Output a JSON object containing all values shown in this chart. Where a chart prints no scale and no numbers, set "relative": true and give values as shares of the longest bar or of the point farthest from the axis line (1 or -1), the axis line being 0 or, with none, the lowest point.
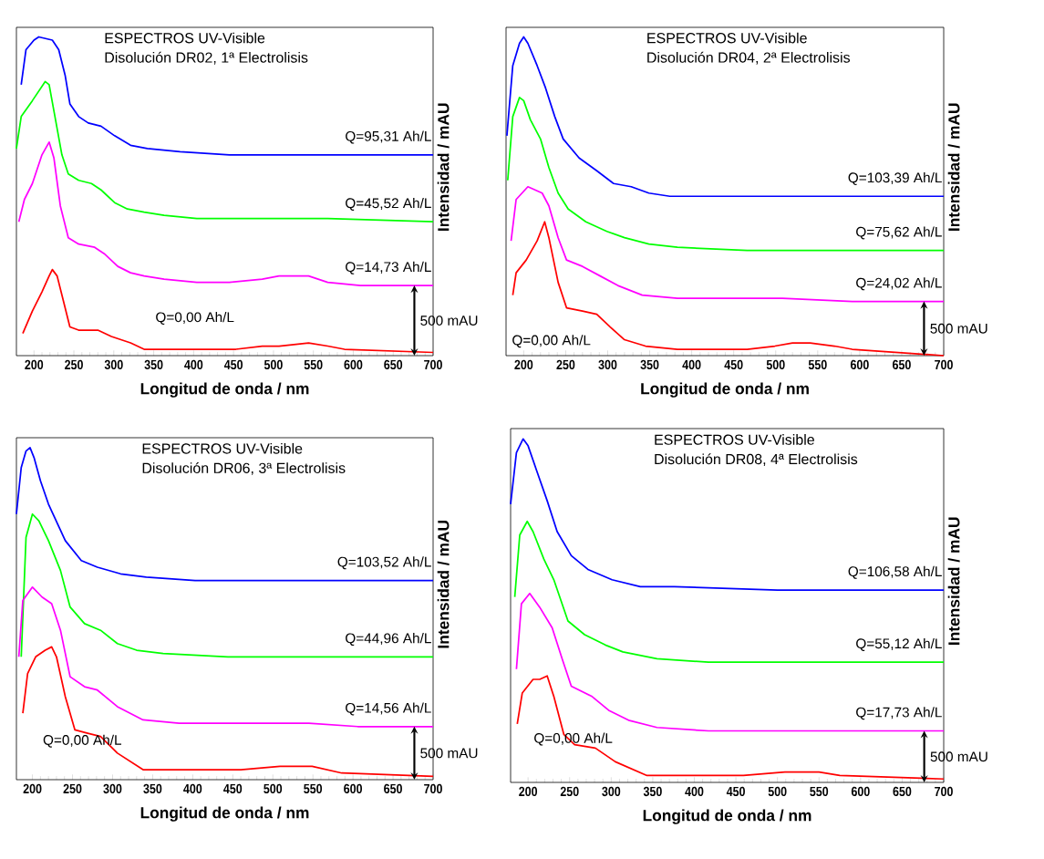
{
  "chart_data": [
    {
      "type": "line",
      "title": "ESPECTROS UV-Visible",
      "subtitle": "Disolución DR02, 1ª Electrolisis",
      "xlabel": "Longitud de onda / nm",
      "ylabel": "Intensidad / mAU",
      "relative": true,
      "xlim": [
        178,
        700
      ],
      "xticks": [
        200,
        250,
        300,
        350,
        400,
        450,
        500,
        550,
        600,
        650,
        700
      ],
      "annotations": [
        "500 mAU"
      ],
      "series": [
        {
          "name": "Q=95,31 Ah/L",
          "color": "#0000ff",
          "x": [
            184,
            190,
            200,
            206,
            223,
            231,
            239,
            245,
            256,
            268,
            284,
            301,
            321,
            342,
            383,
            445,
            568,
            700
          ],
          "values": [
            0.85,
            0.96,
            0.99,
            1.0,
            0.99,
            0.96,
            0.88,
            0.79,
            0.75,
            0.73,
            0.72,
            0.69,
            0.66,
            0.65,
            0.64,
            0.63,
            0.63,
            0.63
          ]
        },
        {
          "name": "Q=45,52 Ah/L",
          "color": "#00ff00",
          "x": [
            178,
            184,
            198,
            214,
            219,
            227,
            235,
            243,
            256,
            272,
            284,
            301,
            317,
            338,
            363,
            404,
            527,
            544,
            568,
            700
          ],
          "values": [
            0.65,
            0.75,
            0.8,
            0.86,
            0.85,
            0.74,
            0.63,
            0.57,
            0.55,
            0.54,
            0.52,
            0.48,
            0.46,
            0.45,
            0.44,
            0.43,
            0.43,
            0.43,
            0.43,
            0.42
          ]
        },
        {
          "name": "Q=14,73 Ah/L",
          "color": "#ff00ff",
          "x": [
            181,
            188,
            198,
            210,
            219,
            225,
            233,
            243,
            256,
            276,
            288,
            305,
            321,
            338,
            363,
            404,
            445,
            486,
            507,
            544,
            568,
            609,
            700
          ],
          "values": [
            0.42,
            0.49,
            0.54,
            0.63,
            0.67,
            0.62,
            0.47,
            0.37,
            0.35,
            0.34,
            0.32,
            0.28,
            0.26,
            0.25,
            0.24,
            0.23,
            0.23,
            0.24,
            0.25,
            0.25,
            0.23,
            0.22,
            0.22
          ]
        },
        {
          "name": "Q=0,00 Ah/L",
          "color": "#ff0000",
          "x": [
            186,
            198,
            210,
            219,
            223,
            229,
            237,
            245,
            256,
            280,
            297,
            321,
            338,
            363,
            404,
            453,
            486,
            507,
            544,
            568,
            589,
            700
          ],
          "values": [
            0.07,
            0.14,
            0.2,
            0.25,
            0.27,
            0.25,
            0.17,
            0.09,
            0.08,
            0.08,
            0.06,
            0.04,
            0.02,
            0.02,
            0.02,
            0.02,
            0.03,
            0.03,
            0.04,
            0.03,
            0.02,
            0.01
          ]
        }
      ]
    },
    {
      "type": "line",
      "title": "ESPECTROS UV-Visible",
      "subtitle": "Disolución DR04, 2ª Electrolisis",
      "xlabel": "Longitud de onda / nm",
      "ylabel": "Intensidad / mAU",
      "relative": true,
      "xlim": [
        179,
        700
      ],
      "xticks": [
        200,
        250,
        300,
        350,
        400,
        450,
        500,
        550,
        600,
        650,
        700
      ],
      "annotations": [
        "500 mAU"
      ],
      "series": [
        {
          "name": "Q=103,39 Ah/L",
          "color": "#0000ff",
          "x": [
            180,
            187,
            195,
            200,
            205,
            216,
            226,
            237,
            247,
            266,
            287,
            307,
            328,
            349,
            374,
            424,
            549,
            700
          ],
          "values": [
            0.69,
            0.91,
            0.98,
            1.0,
            0.98,
            0.91,
            0.84,
            0.75,
            0.68,
            0.62,
            0.58,
            0.54,
            0.53,
            0.51,
            0.5,
            0.5,
            0.5,
            0.5
          ]
        },
        {
          "name": "Q=75,62 Ah/L",
          "color": "#00ff00",
          "x": [
            181,
            187,
            195,
            200,
            208,
            220,
            230,
            241,
            253,
            274,
            299,
            320,
            349,
            383,
            466,
            591,
            700
          ],
          "values": [
            0.55,
            0.75,
            0.81,
            0.8,
            0.74,
            0.68,
            0.59,
            0.51,
            0.46,
            0.42,
            0.39,
            0.37,
            0.35,
            0.34,
            0.33,
            0.33,
            0.33
          ]
        },
        {
          "name": "Q=24,02 Ah/L",
          "color": "#ff00ff",
          "x": [
            185,
            191,
            205,
            222,
            230,
            241,
            251,
            270,
            291,
            312,
            341,
            383,
            508,
            591,
            700
          ],
          "values": [
            0.36,
            0.49,
            0.53,
            0.51,
            0.47,
            0.37,
            0.3,
            0.28,
            0.25,
            0.22,
            0.19,
            0.18,
            0.18,
            0.17,
            0.17
          ]
        },
        {
          "name": "Q=0,00 Ah/L",
          "color": "#ff0000",
          "x": [
            187,
            191,
            203,
            216,
            225,
            230,
            241,
            251,
            270,
            287,
            303,
            320,
            345,
            383,
            466,
            499,
            520,
            541,
            570,
            591,
            700
          ],
          "values": [
            0.19,
            0.26,
            0.3,
            0.36,
            0.42,
            0.37,
            0.23,
            0.15,
            0.14,
            0.13,
            0.09,
            0.05,
            0.03,
            0.02,
            0.02,
            0.03,
            0.04,
            0.04,
            0.03,
            0.02,
            0.0
          ]
        }
      ]
    },
    {
      "type": "line",
      "title": "ESPECTROS UV-Visible",
      "subtitle": "Disolución DR06, 3ª Electrolisis",
      "xlabel": "Longitud de onda / nm",
      "ylabel": "Intensidad / mAU",
      "relative": true,
      "xlim": [
        180,
        700
      ],
      "xticks": [
        200,
        250,
        300,
        350,
        400,
        450,
        500,
        550,
        600,
        650,
        700
      ],
      "annotations": [
        "500 mAU"
      ],
      "series": [
        {
          "name": "Q=103,52 Ah/L",
          "color": "#0000ff",
          "x": [
            180,
            186,
            192,
            197,
            202,
            210,
            220,
            241,
            261,
            281,
            310,
            342,
            403,
            566,
            700
          ],
          "values": [
            0.8,
            0.94,
            0.99,
            1.0,
            0.97,
            0.9,
            0.83,
            0.72,
            0.66,
            0.64,
            0.62,
            0.61,
            0.6,
            0.6,
            0.6
          ]
        },
        {
          "name": "Q=44,96 Ah/L",
          "color": "#00ff00",
          "x": [
            186,
            192,
            200,
            208,
            220,
            235,
            247,
            265,
            285,
            306,
            330,
            363,
            444,
            566,
            700
          ],
          "values": [
            0.37,
            0.73,
            0.8,
            0.78,
            0.72,
            0.63,
            0.52,
            0.47,
            0.45,
            0.41,
            0.39,
            0.38,
            0.37,
            0.37,
            0.37
          ]
        },
        {
          "name": "Q=14,56 Ah/L",
          "color": "#ff00ff",
          "x": [
            183,
            188,
            200,
            212,
            224,
            235,
            247,
            265,
            281,
            306,
            338,
            383,
            485,
            545,
            606,
            700
          ],
          "values": [
            0.37,
            0.54,
            0.58,
            0.55,
            0.53,
            0.45,
            0.31,
            0.28,
            0.27,
            0.22,
            0.18,
            0.17,
            0.17,
            0.17,
            0.16,
            0.16
          ]
        },
        {
          "name": "Q=0,00 Ah/L",
          "color": "#ff0000",
          "x": [
            188,
            194,
            204,
            216,
            224,
            230,
            241,
            253,
            269,
            285,
            306,
            338,
            403,
            460,
            509,
            549,
            586,
            700
          ],
          "values": [
            0.2,
            0.32,
            0.37,
            0.39,
            0.4,
            0.37,
            0.25,
            0.15,
            0.14,
            0.13,
            0.08,
            0.03,
            0.03,
            0.03,
            0.04,
            0.04,
            0.02,
            0.01
          ]
        }
      ]
    },
    {
      "type": "line",
      "title": "ESPECTROS UV-Visible",
      "subtitle": "Disolución DR08, 4ª Electrolisis",
      "xlabel": "Longitud de onda / nm",
      "ylabel": "Intensidad / mAU",
      "relative": true,
      "xlim": [
        179,
        700
      ],
      "xticks": [
        200,
        250,
        300,
        350,
        400,
        450,
        500,
        550,
        600,
        650,
        700
      ],
      "annotations": [
        "500 mAU"
      ],
      "series": [
        {
          "name": "Q=106,58 Ah/L",
          "color": "#0000ff",
          "x": [
            179,
            186,
            194,
            200,
            210,
            223,
            235,
            252,
            272,
            301,
            335,
            376,
            500,
            700
          ],
          "values": [
            0.81,
            0.96,
            1.0,
            0.98,
            0.91,
            0.82,
            0.73,
            0.66,
            0.62,
            0.59,
            0.57,
            0.57,
            0.56,
            0.56
          ]
        },
        {
          "name": "Q=55,12 Ah/L",
          "color": "#00ff00",
          "x": [
            184,
            190,
            199,
            206,
            219,
            231,
            248,
            268,
            293,
            314,
            355,
            417,
            583,
            700
          ],
          "values": [
            0.54,
            0.72,
            0.76,
            0.73,
            0.65,
            0.59,
            0.47,
            0.43,
            0.4,
            0.38,
            0.36,
            0.35,
            0.35,
            0.35
          ]
        },
        {
          "name": "Q=17,73 Ah/L",
          "color": "#ff00ff",
          "x": [
            186,
            192,
            202,
            214,
            229,
            241,
            252,
            277,
            297,
            322,
            355,
            417,
            542,
            625,
            700
          ],
          "values": [
            0.33,
            0.52,
            0.55,
            0.51,
            0.45,
            0.36,
            0.28,
            0.25,
            0.21,
            0.18,
            0.16,
            0.15,
            0.15,
            0.15,
            0.15
          ]
        },
        {
          "name": "Q=0,00 Ah/L",
          "color": "#ff0000",
          "x": [
            187,
            193,
            206,
            214,
            223,
            231,
            243,
            256,
            281,
            305,
            343,
            417,
            459,
            509,
            550,
            575,
            700
          ],
          "values": [
            0.17,
            0.26,
            0.3,
            0.3,
            0.31,
            0.25,
            0.14,
            0.11,
            0.1,
            0.06,
            0.02,
            0.02,
            0.02,
            0.03,
            0.03,
            0.02,
            0.01
          ]
        }
      ]
    }
  ]
}
